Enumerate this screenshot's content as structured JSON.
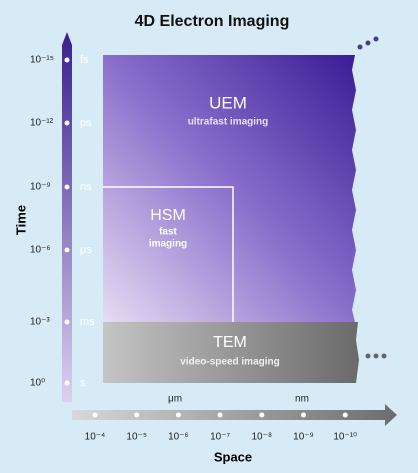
{
  "title": "4D Electron Imaging",
  "y_axis": {
    "label": "Time",
    "ticks": [
      {
        "value": "10⁻¹⁵",
        "unit": "fs"
      },
      {
        "value": "10⁻¹²",
        "unit": "ps"
      },
      {
        "value": "10⁻⁹",
        "unit": "ns"
      },
      {
        "value": "10⁻⁶",
        "unit": "μs"
      },
      {
        "value": "10⁻³",
        "unit": "ms"
      },
      {
        "value": "10⁰",
        "unit": "s"
      }
    ]
  },
  "x_axis": {
    "label": "Space",
    "ticks": [
      "10⁻⁴",
      "10⁻⁵",
      "10⁻⁶",
      "10⁻⁷",
      "10⁻⁸",
      "10⁻⁹",
      "10⁻¹⁰"
    ],
    "units": [
      "μm",
      "nm"
    ]
  },
  "regions": [
    {
      "name": "UEM",
      "description_lines": [
        "ultrafast imaging"
      ]
    },
    {
      "name": "HSM",
      "description_lines": [
        "fast",
        "imaging"
      ]
    },
    {
      "name": "TEM",
      "description_lines": [
        "video-speed imaging"
      ]
    }
  ]
}
